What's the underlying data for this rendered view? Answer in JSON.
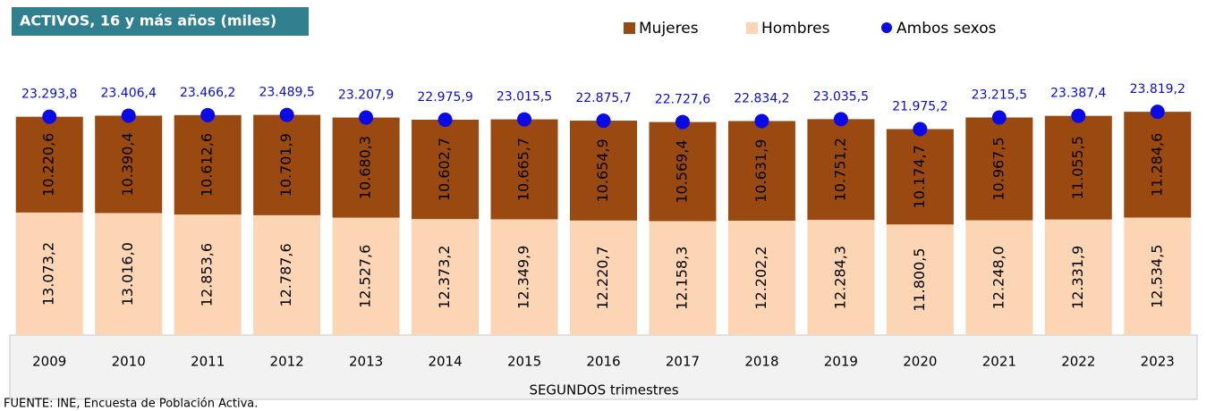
{
  "chart_data": {
    "type": "bar",
    "stacked": true,
    "title": "ACTIVOS, 16 y más años (miles)",
    "x_label": "SEGUNDOS trimestres",
    "source": "FUENTE: INE, Encuesta de Población Activa.",
    "categories": [
      "2009",
      "2010",
      "2011",
      "2012",
      "2013",
      "2014",
      "2015",
      "2016",
      "2017",
      "2018",
      "2019",
      "2020",
      "2021",
      "2022",
      "2023"
    ],
    "series": [
      {
        "name": "Mujeres",
        "color": "#9a4a10",
        "values": [
          10220.6,
          10390.4,
          10612.6,
          10701.9,
          10680.3,
          10602.7,
          10665.7,
          10654.9,
          10569.4,
          10631.9,
          10751.2,
          10174.7,
          10967.5,
          11055.5,
          11284.6
        ],
        "value_labels": [
          "10.220,6",
          "10.390,4",
          "10.612,6",
          "10.701,9",
          "10.680,3",
          "10.602,7",
          "10.665,7",
          "10.654,9",
          "10.569,4",
          "10.631,9",
          "10.751,2",
          "10.174,7",
          "10.967,5",
          "11.055,5",
          "11.284,6"
        ]
      },
      {
        "name": "Hombres",
        "color": "#fcd5b5",
        "values": [
          13073.2,
          13016.0,
          12853.6,
          12787.6,
          12527.6,
          12373.2,
          12349.9,
          12220.7,
          12158.3,
          12202.2,
          12284.3,
          11800.5,
          12248.0,
          12331.9,
          12534.5
        ],
        "value_labels": [
          "13.073,2",
          "13.016,0",
          "12.853,6",
          "12.787,6",
          "12.527,6",
          "12.373,2",
          "12.349,9",
          "12.220,7",
          "12.158,3",
          "12.202,2",
          "12.284,3",
          "11.800,5",
          "12.248,0",
          "12.331,9",
          "12.534,5"
        ]
      },
      {
        "name": "Ambos sexos",
        "color": "#0a0ae6",
        "marker": "dot",
        "values": [
          23293.8,
          23406.4,
          23466.2,
          23489.5,
          23207.9,
          22975.9,
          23015.5,
          22875.7,
          22727.6,
          22834.2,
          23035.5,
          21975.2,
          23215.5,
          23387.4,
          23819.2
        ],
        "value_labels": [
          "23.293,8",
          "23.406,4",
          "23.466,2",
          "23.489,5",
          "23.207,9",
          "22.975,9",
          "23.015,5",
          "22.875,7",
          "22.727,6",
          "22.834,2",
          "23.035,5",
          "21.975,2",
          "23.215,5",
          "23.387,4",
          "23.819,2"
        ]
      }
    ],
    "legend": "top"
  }
}
